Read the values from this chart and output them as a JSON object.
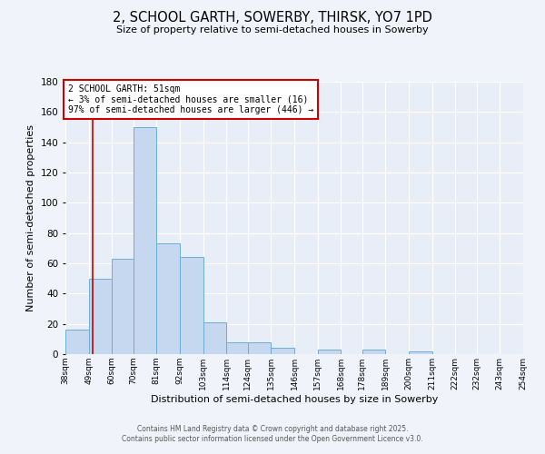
{
  "title": "2, SCHOOL GARTH, SOWERBY, THIRSK, YO7 1PD",
  "subtitle": "Size of property relative to semi-detached houses in Sowerby",
  "xlabel": "Distribution of semi-detached houses by size in Sowerby",
  "ylabel": "Number of semi-detached properties",
  "bin_labels": [
    "38sqm",
    "49sqm",
    "60sqm",
    "70sqm",
    "81sqm",
    "92sqm",
    "103sqm",
    "114sqm",
    "124sqm",
    "135sqm",
    "146sqm",
    "157sqm",
    "168sqm",
    "178sqm",
    "189sqm",
    "200sqm",
    "211sqm",
    "222sqm",
    "232sqm",
    "243sqm",
    "254sqm"
  ],
  "bin_edges": [
    38,
    49,
    60,
    70,
    81,
    92,
    103,
    114,
    124,
    135,
    146,
    157,
    168,
    178,
    189,
    200,
    211,
    222,
    232,
    243,
    254
  ],
  "bar_heights": [
    16,
    50,
    63,
    150,
    73,
    64,
    21,
    8,
    8,
    4,
    0,
    3,
    0,
    3,
    0,
    2,
    0,
    0,
    0,
    0,
    1
  ],
  "bar_color": "#c5d8f0",
  "bar_edge_color": "#6baed6",
  "property_line_x": 51,
  "property_line_color": "#cc0000",
  "ylim": [
    0,
    180
  ],
  "yticks": [
    0,
    20,
    40,
    60,
    80,
    100,
    120,
    140,
    160,
    180
  ],
  "annotation_title": "2 SCHOOL GARTH: 51sqm",
  "annotation_line1": "← 3% of semi-detached houses are smaller (16)",
  "annotation_line2": "97% of semi-detached houses are larger (446) →",
  "footer1": "Contains HM Land Registry data © Crown copyright and database right 2025.",
  "footer2": "Contains public sector information licensed under the Open Government Licence v3.0.",
  "background_color": "#f0f4fa",
  "plot_background_color": "#e8eef8"
}
